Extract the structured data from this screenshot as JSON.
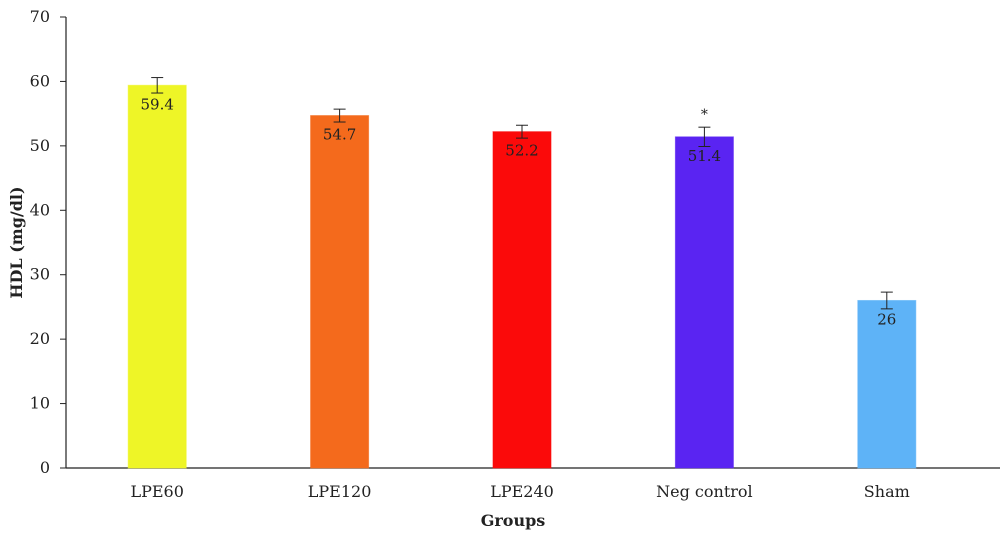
{
  "chart_data": {
    "type": "bar",
    "title": "",
    "xlabel": "Groups",
    "ylabel": "HDL (mg/dl)",
    "ylim": [
      0,
      70
    ],
    "yticks": [
      0,
      10,
      20,
      30,
      40,
      50,
      60,
      70
    ],
    "grid": false,
    "categories": [
      "LPE60",
      "LPE120",
      "LPE240",
      "Neg control",
      "Sham"
    ],
    "values": [
      59.4,
      54.7,
      52.2,
      51.4,
      26
    ],
    "error_bars": [
      1.2,
      1.0,
      1.0,
      1.5,
      1.3
    ],
    "data_labels": [
      "59.4",
      "54.7",
      "52.2",
      "51.4",
      "26"
    ],
    "annotations": [
      "",
      "",
      "",
      "*",
      ""
    ],
    "colors": [
      "#eef527",
      "#f46a1c",
      "#fb0a0a",
      "#5a24f2",
      "#5eb3f7"
    ]
  }
}
